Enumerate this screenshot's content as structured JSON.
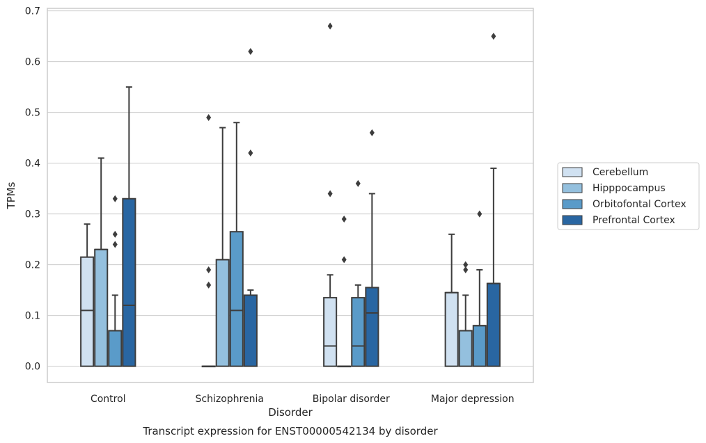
{
  "chart_data": {
    "type": "box",
    "title": "",
    "caption": "Transcript expression for ENST00000542134 by disorder",
    "xlabel": "Disorder",
    "ylabel": "TPMs",
    "ylim": [
      -0.032,
      0.705
    ],
    "yticks": [
      "0.0",
      "0.1",
      "0.2",
      "0.3",
      "0.4",
      "0.5",
      "0.6",
      "0.7"
    ],
    "grid": "horizontal",
    "legend_position": "right",
    "categories": [
      "Control",
      "Schizophrenia",
      "Bipolar disorder",
      "Major depression"
    ],
    "series": [
      {
        "name": "Cerebellum",
        "color": "#d0e1f1",
        "boxes": [
          {
            "q1": 0.0,
            "median": 0.11,
            "q3": 0.215,
            "whisker_low": 0.0,
            "whisker_high": 0.28,
            "outliers": []
          },
          {
            "q1": 0.0,
            "median": 0.0,
            "q3": 0.0,
            "whisker_low": 0.0,
            "whisker_high": 0.0,
            "outliers": [
              0.16,
              0.19,
              0.49
            ]
          },
          {
            "q1": 0.0,
            "median": 0.04,
            "q3": 0.135,
            "whisker_low": 0.0,
            "whisker_high": 0.18,
            "outliers": [
              0.34,
              0.67
            ]
          },
          {
            "q1": 0.0,
            "median": 0.145,
            "q3": 0.145,
            "whisker_low": 0.0,
            "whisker_high": 0.26,
            "outliers": []
          }
        ]
      },
      {
        "name": "Hipppocampus",
        "color": "#94c0de",
        "boxes": [
          {
            "q1": 0.0,
            "median": 0.23,
            "q3": 0.23,
            "whisker_low": 0.0,
            "whisker_high": 0.41,
            "outliers": []
          },
          {
            "q1": 0.0,
            "median": 0.21,
            "q3": 0.21,
            "whisker_low": 0.0,
            "whisker_high": 0.47,
            "outliers": []
          },
          {
            "q1": 0.0,
            "median": 0.0,
            "q3": 0.0,
            "whisker_low": 0.0,
            "whisker_high": 0.0,
            "outliers": [
              0.21,
              0.29
            ]
          },
          {
            "q1": 0.0,
            "median": 0.07,
            "q3": 0.07,
            "whisker_low": 0.0,
            "whisker_high": 0.14,
            "outliers": [
              0.19,
              0.2
            ]
          }
        ]
      },
      {
        "name": "Orbitofontal Cortex",
        "color": "#5a9bc9",
        "boxes": [
          {
            "q1": 0.0,
            "median": 0.07,
            "q3": 0.07,
            "whisker_low": 0.0,
            "whisker_high": 0.14,
            "outliers": [
              0.24,
              0.26,
              0.33
            ]
          },
          {
            "q1": 0.0,
            "median": 0.11,
            "q3": 0.265,
            "whisker_low": 0.0,
            "whisker_high": 0.48,
            "outliers": []
          },
          {
            "q1": 0.0,
            "median": 0.04,
            "q3": 0.135,
            "whisker_low": 0.0,
            "whisker_high": 0.16,
            "outliers": [
              0.36
            ]
          },
          {
            "q1": 0.0,
            "median": 0.08,
            "q3": 0.08,
            "whisker_low": 0.0,
            "whisker_high": 0.19,
            "outliers": [
              0.3
            ]
          }
        ]
      },
      {
        "name": "Prefrontal Cortex",
        "color": "#2966a2",
        "boxes": [
          {
            "q1": 0.0,
            "median": 0.12,
            "q3": 0.33,
            "whisker_low": 0.0,
            "whisker_high": 0.55,
            "outliers": []
          },
          {
            "q1": 0.0,
            "median": 0.14,
            "q3": 0.14,
            "whisker_low": 0.0,
            "whisker_high": 0.15,
            "outliers": [
              0.42,
              0.62
            ]
          },
          {
            "q1": 0.0,
            "median": 0.105,
            "q3": 0.155,
            "whisker_low": 0.0,
            "whisker_high": 0.34,
            "outliers": [
              0.46
            ]
          },
          {
            "q1": 0.0,
            "median": 0.163,
            "q3": 0.163,
            "whisker_low": 0.0,
            "whisker_high": 0.39,
            "outliers": [
              0.65
            ]
          }
        ]
      }
    ]
  }
}
